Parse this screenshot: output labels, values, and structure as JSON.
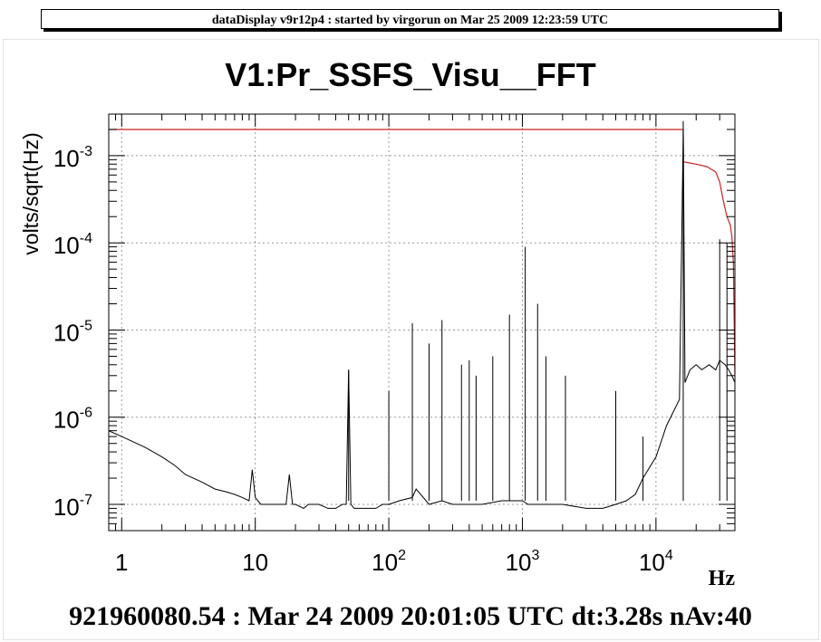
{
  "header": {
    "text": "dataDisplay v9r12p4 : started by virgorun on Mar 25 2009 12:23:59 UTC"
  },
  "footer": {
    "text": "921960080.54 : Mar 24 2009 20:01:05 UTC dt:3.28s nAv:40"
  },
  "chart_data": {
    "type": "line",
    "title": "V1:Pr_SSFS_Visu__FFT",
    "xlabel": "Hz",
    "ylabel": "volts/sqrt(Hz)",
    "xscale": "log",
    "yscale": "log",
    "xlim": [
      0.8,
      39000
    ],
    "ylim": [
      5e-08,
      0.003
    ],
    "grid": true,
    "x_ticks": [
      {
        "value": 1,
        "label": "1"
      },
      {
        "value": 10,
        "label": "10"
      },
      {
        "value": 100,
        "label": "10",
        "exp": "2"
      },
      {
        "value": 1000,
        "label": "10",
        "exp": "3"
      },
      {
        "value": 10000,
        "label": "10",
        "exp": "4"
      }
    ],
    "y_ticks": [
      {
        "value": 1e-07,
        "label": "10",
        "exp": "-7"
      },
      {
        "value": 1e-06,
        "label": "10",
        "exp": "-6"
      },
      {
        "value": 1e-05,
        "label": "10",
        "exp": "-5"
      },
      {
        "value": 0.0001,
        "label": "10",
        "exp": "-4"
      },
      {
        "value": 0.001,
        "label": "10",
        "exp": "-3"
      }
    ],
    "series": [
      {
        "color": "#cc2222",
        "x": [
          0.8,
          16000,
          16050,
          20000,
          24000,
          28000,
          30000,
          32000,
          34000,
          36000,
          37000,
          38000,
          39000
        ],
        "y": [
          0.002,
          0.002,
          0.00085,
          0.0008,
          0.00075,
          0.00065,
          0.0005,
          0.0003,
          0.0002,
          0.00016,
          0.00012,
          6e-05,
          3e-06
        ]
      },
      {
        "color": "#000000",
        "x": [
          0.8,
          1,
          1.5,
          2,
          2.5,
          3,
          4,
          5,
          6,
          7,
          8,
          9,
          9.5,
          10,
          11,
          13,
          15,
          17,
          18,
          19,
          20,
          23,
          25,
          30,
          35,
          40,
          45,
          48,
          50,
          52,
          55,
          60,
          70,
          80,
          90,
          100,
          120,
          150,
          160,
          200,
          250,
          300,
          400,
          500,
          700,
          1000,
          1100,
          1500,
          2000,
          3000,
          4000,
          5000,
          6000,
          7000,
          8000,
          10000,
          12000,
          15000,
          16000,
          16500,
          18000,
          20000,
          22000,
          25000,
          28000,
          30000,
          33000,
          35000,
          37000,
          39000
        ],
        "y": [
          7e-07,
          6e-07,
          4.5e-07,
          3.5e-07,
          2.8e-07,
          2.2e-07,
          1.8e-07,
          1.5e-07,
          1.4e-07,
          1.3e-07,
          1.2e-07,
          1.1e-07,
          2.5e-07,
          1.2e-07,
          1e-07,
          1e-07,
          1e-07,
          1e-07,
          2.2e-07,
          1e-07,
          1e-07,
          9e-08,
          1e-07,
          1e-07,
          9e-08,
          9e-08,
          1e-07,
          1e-07,
          3.5e-06,
          1e-07,
          9e-08,
          9e-08,
          9e-08,
          9e-08,
          1e-07,
          1e-07,
          1.1e-07,
          1.2e-07,
          1.5e-07,
          1e-07,
          1.1e-07,
          1e-07,
          1e-07,
          1e-07,
          1.1e-07,
          1.1e-07,
          1e-07,
          1e-07,
          1e-07,
          9e-08,
          9e-08,
          1e-07,
          1.1e-07,
          1.3e-07,
          2e-07,
          3.5e-07,
          8e-07,
          1.6e-06,
          0.002,
          2.5e-06,
          3.5e-06,
          4e-06,
          3.5e-06,
          4e-06,
          3.5e-06,
          4.5e-06,
          4e-06,
          3.5e-06,
          3e-06,
          2.5e-06
        ]
      }
    ],
    "peaks": [
      {
        "x": 50,
        "y": 3.5e-06
      },
      {
        "x": 100,
        "y": 2e-06
      },
      {
        "x": 150,
        "y": 1.2e-05
      },
      {
        "x": 200,
        "y": 7e-06
      },
      {
        "x": 250,
        "y": 1.3e-05
      },
      {
        "x": 350,
        "y": 4e-06
      },
      {
        "x": 400,
        "y": 4.5e-06
      },
      {
        "x": 450,
        "y": 3e-06
      },
      {
        "x": 600,
        "y": 5e-06
      },
      {
        "x": 800,
        "y": 1.5e-05
      },
      {
        "x": 1050,
        "y": 9e-05
      },
      {
        "x": 1300,
        "y": 2e-05
      },
      {
        "x": 1500,
        "y": 5e-06
      },
      {
        "x": 2100,
        "y": 3e-06
      },
      {
        "x": 5000,
        "y": 2e-06
      },
      {
        "x": 8000,
        "y": 6e-07
      },
      {
        "x": 16000,
        "y": 0.0025
      },
      {
        "x": 30000,
        "y": 0.00011
      },
      {
        "x": 34000,
        "y": 0.0001
      }
    ]
  }
}
